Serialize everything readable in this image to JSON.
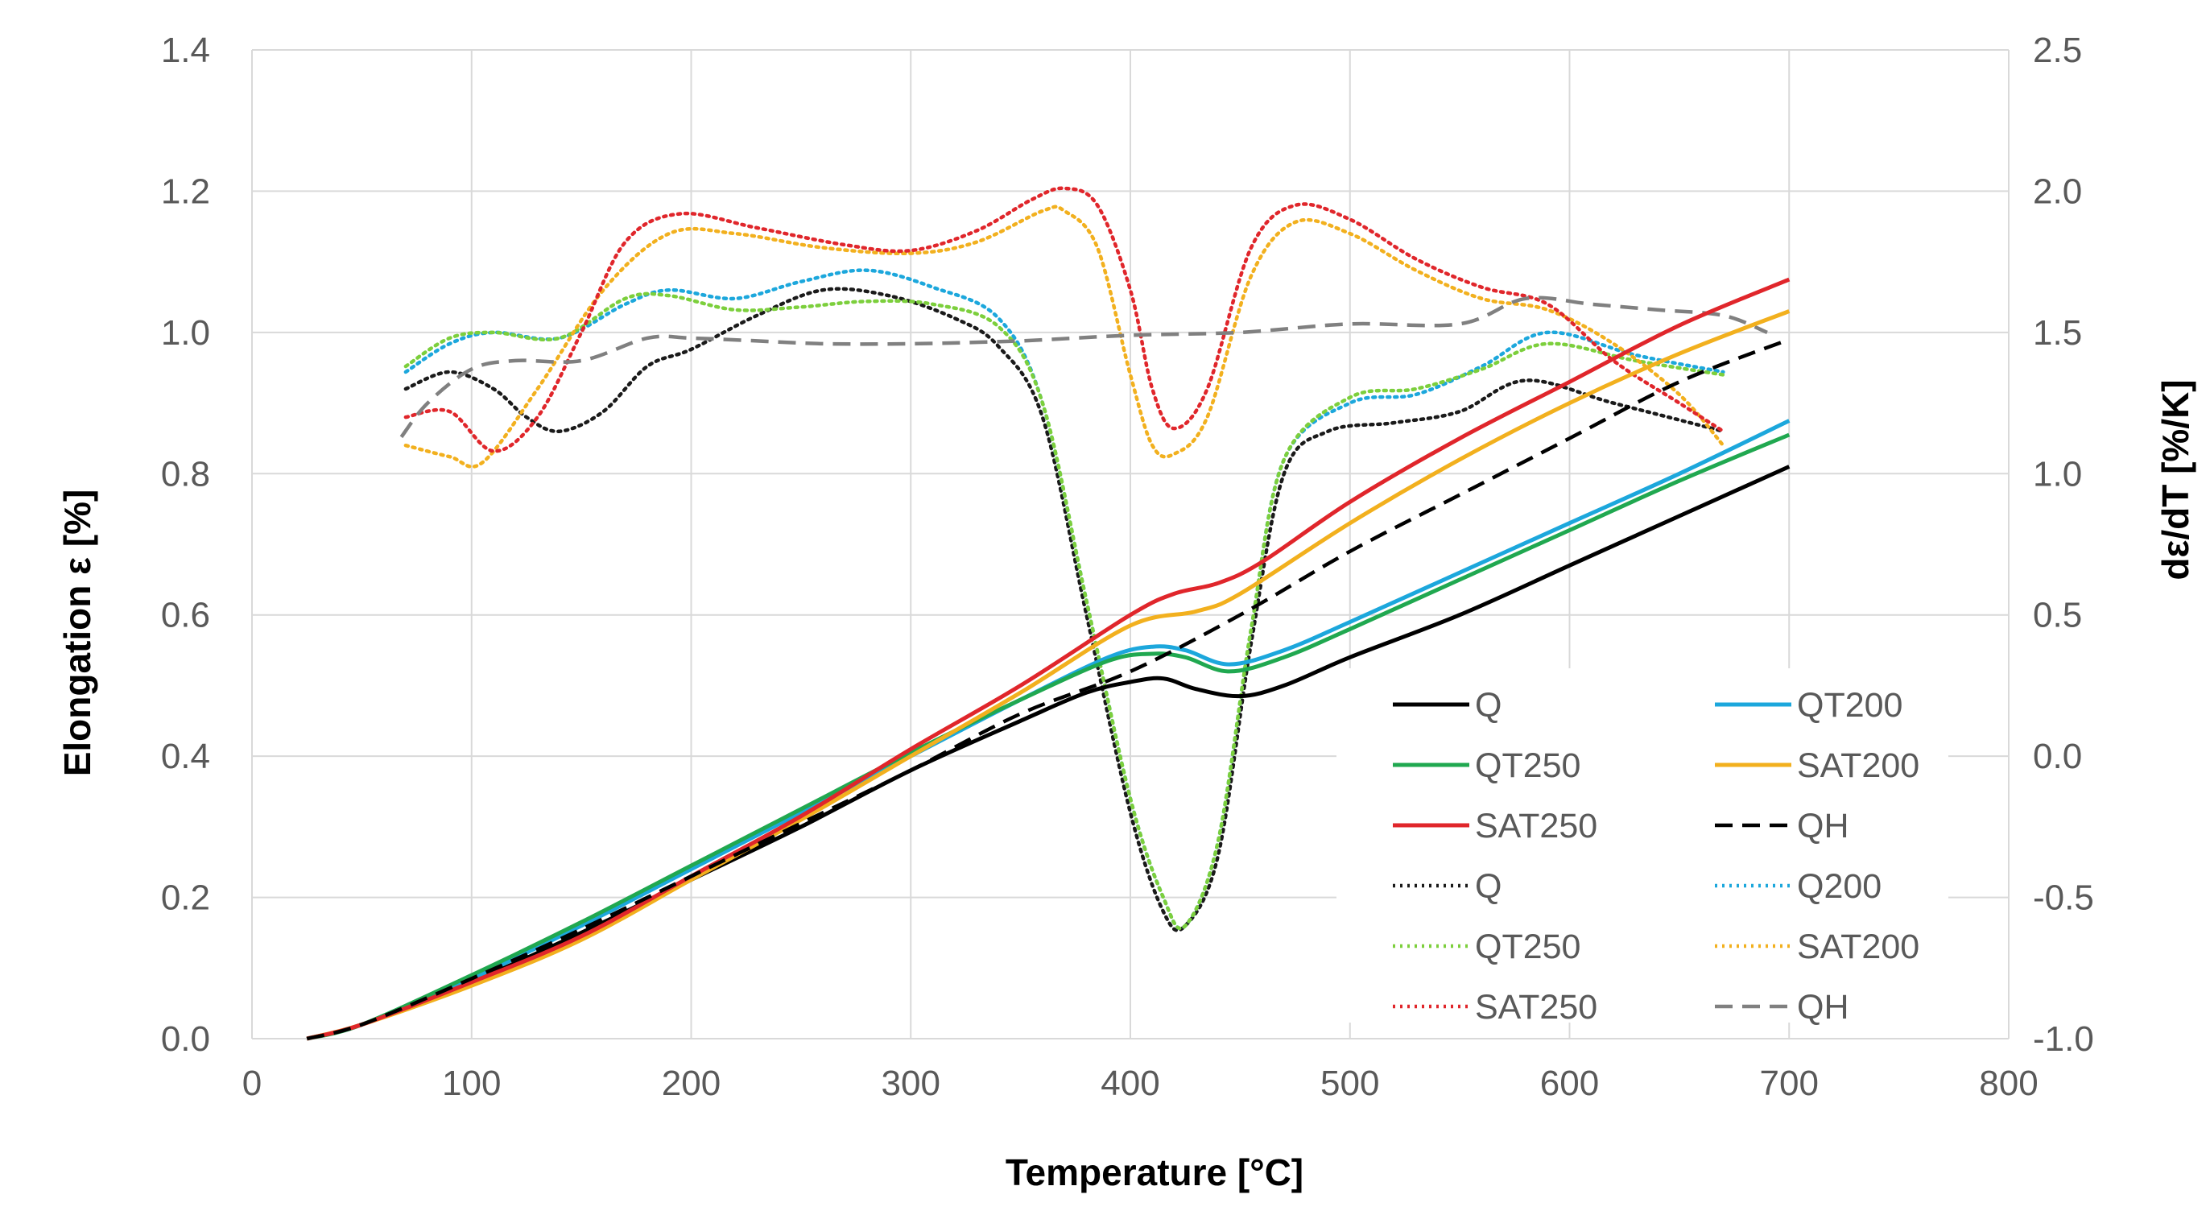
{
  "chart_data": {
    "type": "line",
    "title": "",
    "xlabel": "Temperature [°C]",
    "ylabel": "Elongation ε [%]",
    "y2label": "dε/dT [%/K]",
    "xlim": [
      0,
      800
    ],
    "ylim": [
      0,
      1.4
    ],
    "y2lim": [
      -1.0,
      2.5
    ],
    "x_ticks": [
      "0",
      "100",
      "200",
      "300",
      "400",
      "500",
      "600",
      "700",
      "800"
    ],
    "y_ticks": [
      "0.0",
      "0.2",
      "0.4",
      "0.6",
      "0.8",
      "1.0",
      "1.2",
      "1.4"
    ],
    "y2_ticks": [
      "-1.0",
      "-0.5",
      "0.0",
      "0.5",
      "1.0",
      "1.5",
      "2.0",
      "2.5"
    ],
    "grid": true,
    "legend_position": "bottom-right",
    "series": [
      {
        "name": "Q",
        "axis": "left",
        "style": "solid",
        "color": "#000000",
        "points": [
          [
            25,
            0
          ],
          [
            50,
            0.02
          ],
          [
            100,
            0.08
          ],
          [
            150,
            0.15
          ],
          [
            200,
            0.225
          ],
          [
            250,
            0.3
          ],
          [
            300,
            0.38
          ],
          [
            350,
            0.45
          ],
          [
            380,
            0.49
          ],
          [
            400,
            0.505
          ],
          [
            415,
            0.51
          ],
          [
            430,
            0.495
          ],
          [
            450,
            0.485
          ],
          [
            470,
            0.5
          ],
          [
            500,
            0.54
          ],
          [
            550,
            0.6
          ],
          [
            600,
            0.67
          ],
          [
            650,
            0.74
          ],
          [
            700,
            0.81
          ]
        ]
      },
      {
        "name": "QT200",
        "axis": "left",
        "style": "solid",
        "color": "#1ca7dc",
        "points": [
          [
            25,
            0
          ],
          [
            50,
            0.02
          ],
          [
            100,
            0.085
          ],
          [
            150,
            0.16
          ],
          [
            200,
            0.24
          ],
          [
            250,
            0.32
          ],
          [
            300,
            0.4
          ],
          [
            350,
            0.48
          ],
          [
            390,
            0.54
          ],
          [
            410,
            0.555
          ],
          [
            425,
            0.55
          ],
          [
            445,
            0.53
          ],
          [
            470,
            0.55
          ],
          [
            500,
            0.59
          ],
          [
            550,
            0.66
          ],
          [
            600,
            0.73
          ],
          [
            650,
            0.8
          ],
          [
            700,
            0.875
          ]
        ]
      },
      {
        "name": "QT250",
        "axis": "left",
        "style": "solid",
        "color": "#20a850",
        "points": [
          [
            25,
            0
          ],
          [
            50,
            0.02
          ],
          [
            100,
            0.09
          ],
          [
            150,
            0.165
          ],
          [
            200,
            0.245
          ],
          [
            250,
            0.325
          ],
          [
            300,
            0.405
          ],
          [
            350,
            0.48
          ],
          [
            390,
            0.535
          ],
          [
            410,
            0.545
          ],
          [
            425,
            0.54
          ],
          [
            445,
            0.52
          ],
          [
            470,
            0.54
          ],
          [
            500,
            0.58
          ],
          [
            550,
            0.65
          ],
          [
            600,
            0.72
          ],
          [
            650,
            0.79
          ],
          [
            700,
            0.855
          ]
        ]
      },
      {
        "name": "SAT200",
        "axis": "left",
        "style": "solid",
        "color": "#f2b01e",
        "points": [
          [
            25,
            0
          ],
          [
            50,
            0.02
          ],
          [
            100,
            0.075
          ],
          [
            150,
            0.14
          ],
          [
            200,
            0.225
          ],
          [
            250,
            0.31
          ],
          [
            300,
            0.4
          ],
          [
            350,
            0.49
          ],
          [
            400,
            0.585
          ],
          [
            430,
            0.605
          ],
          [
            450,
            0.63
          ],
          [
            500,
            0.73
          ],
          [
            550,
            0.82
          ],
          [
            600,
            0.9
          ],
          [
            650,
            0.97
          ],
          [
            700,
            1.03
          ]
        ]
      },
      {
        "name": "SAT250",
        "axis": "left",
        "style": "solid",
        "color": "#e0262b",
        "points": [
          [
            25,
            0
          ],
          [
            50,
            0.02
          ],
          [
            100,
            0.08
          ],
          [
            150,
            0.145
          ],
          [
            200,
            0.23
          ],
          [
            250,
            0.315
          ],
          [
            300,
            0.41
          ],
          [
            350,
            0.5
          ],
          [
            400,
            0.6
          ],
          [
            420,
            0.63
          ],
          [
            440,
            0.645
          ],
          [
            460,
            0.675
          ],
          [
            500,
            0.76
          ],
          [
            550,
            0.85
          ],
          [
            600,
            0.93
          ],
          [
            650,
            1.01
          ],
          [
            700,
            1.075
          ]
        ]
      },
      {
        "name": "QH",
        "axis": "left",
        "style": "dashed",
        "color": "#000000",
        "points": [
          [
            25,
            0
          ],
          [
            50,
            0.02
          ],
          [
            100,
            0.085
          ],
          [
            150,
            0.155
          ],
          [
            200,
            0.23
          ],
          [
            250,
            0.305
          ],
          [
            300,
            0.38
          ],
          [
            350,
            0.46
          ],
          [
            400,
            0.52
          ],
          [
            450,
            0.6
          ],
          [
            500,
            0.69
          ],
          [
            550,
            0.77
          ],
          [
            600,
            0.85
          ],
          [
            650,
            0.93
          ],
          [
            700,
            0.99
          ]
        ]
      },
      {
        "name": "Q",
        "axis": "right",
        "style": "dotted",
        "color": "#1a1a1a",
        "points": [
          [
            70,
            1.3
          ],
          [
            90,
            1.36
          ],
          [
            110,
            1.3
          ],
          [
            125,
            1.2
          ],
          [
            140,
            1.15
          ],
          [
            160,
            1.22
          ],
          [
            180,
            1.38
          ],
          [
            200,
            1.44
          ],
          [
            230,
            1.56
          ],
          [
            260,
            1.65
          ],
          [
            290,
            1.63
          ],
          [
            320,
            1.55
          ],
          [
            340,
            1.45
          ],
          [
            360,
            1.2
          ],
          [
            380,
            0.5
          ],
          [
            400,
            -0.2
          ],
          [
            415,
            -0.55
          ],
          [
            425,
            -0.6
          ],
          [
            440,
            -0.35
          ],
          [
            455,
            0.4
          ],
          [
            470,
            1.0
          ],
          [
            490,
            1.15
          ],
          [
            520,
            1.18
          ],
          [
            550,
            1.22
          ],
          [
            580,
            1.33
          ],
          [
            620,
            1.25
          ],
          [
            670,
            1.15
          ]
        ]
      },
      {
        "name": "Q200",
        "axis": "right",
        "style": "dotted",
        "color": "#1ca7dc",
        "points": [
          [
            70,
            1.36
          ],
          [
            90,
            1.46
          ],
          [
            110,
            1.5
          ],
          [
            140,
            1.48
          ],
          [
            170,
            1.6
          ],
          [
            190,
            1.65
          ],
          [
            220,
            1.62
          ],
          [
            250,
            1.68
          ],
          [
            280,
            1.72
          ],
          [
            310,
            1.66
          ],
          [
            340,
            1.55
          ],
          [
            360,
            1.25
          ],
          [
            380,
            0.55
          ],
          [
            400,
            -0.15
          ],
          [
            415,
            -0.5
          ],
          [
            425,
            -0.6
          ],
          [
            440,
            -0.3
          ],
          [
            455,
            0.45
          ],
          [
            470,
            1.05
          ],
          [
            500,
            1.25
          ],
          [
            530,
            1.28
          ],
          [
            560,
            1.38
          ],
          [
            590,
            1.5
          ],
          [
            630,
            1.42
          ],
          [
            670,
            1.36
          ]
        ]
      },
      {
        "name": "QT250",
        "axis": "right",
        "style": "dotted",
        "color": "#7ccf3c",
        "points": [
          [
            70,
            1.38
          ],
          [
            90,
            1.48
          ],
          [
            110,
            1.5
          ],
          [
            140,
            1.48
          ],
          [
            170,
            1.62
          ],
          [
            190,
            1.63
          ],
          [
            220,
            1.58
          ],
          [
            250,
            1.59
          ],
          [
            280,
            1.61
          ],
          [
            310,
            1.6
          ],
          [
            340,
            1.52
          ],
          [
            360,
            1.25
          ],
          [
            380,
            0.55
          ],
          [
            400,
            -0.15
          ],
          [
            415,
            -0.5
          ],
          [
            425,
            -0.6
          ],
          [
            440,
            -0.3
          ],
          [
            455,
            0.45
          ],
          [
            470,
            1.05
          ],
          [
            500,
            1.27
          ],
          [
            530,
            1.3
          ],
          [
            560,
            1.37
          ],
          [
            590,
            1.46
          ],
          [
            630,
            1.4
          ],
          [
            670,
            1.35
          ]
        ]
      },
      {
        "name": "SAT200",
        "axis": "right",
        "style": "dotted",
        "color": "#f2b01e",
        "points": [
          [
            70,
            1.1
          ],
          [
            90,
            1.06
          ],
          [
            105,
            1.04
          ],
          [
            130,
            1.3
          ],
          [
            160,
            1.65
          ],
          [
            190,
            1.85
          ],
          [
            220,
            1.85
          ],
          [
            260,
            1.8
          ],
          [
            300,
            1.78
          ],
          [
            330,
            1.82
          ],
          [
            360,
            1.93
          ],
          [
            370,
            1.93
          ],
          [
            385,
            1.8
          ],
          [
            400,
            1.35
          ],
          [
            410,
            1.1
          ],
          [
            420,
            1.07
          ],
          [
            435,
            1.2
          ],
          [
            455,
            1.7
          ],
          [
            475,
            1.89
          ],
          [
            500,
            1.85
          ],
          [
            530,
            1.72
          ],
          [
            560,
            1.62
          ],
          [
            590,
            1.58
          ],
          [
            620,
            1.46
          ],
          [
            650,
            1.28
          ],
          [
            670,
            1.1
          ]
        ]
      },
      {
        "name": "SAT250",
        "axis": "right",
        "style": "dotted",
        "color": "#e0262b",
        "points": [
          [
            70,
            1.2
          ],
          [
            90,
            1.22
          ],
          [
            110,
            1.08
          ],
          [
            130,
            1.2
          ],
          [
            150,
            1.5
          ],
          [
            170,
            1.82
          ],
          [
            195,
            1.92
          ],
          [
            230,
            1.87
          ],
          [
            270,
            1.81
          ],
          [
            300,
            1.79
          ],
          [
            330,
            1.86
          ],
          [
            355,
            1.97
          ],
          [
            370,
            2.01
          ],
          [
            385,
            1.95
          ],
          [
            400,
            1.65
          ],
          [
            410,
            1.3
          ],
          [
            420,
            1.16
          ],
          [
            435,
            1.3
          ],
          [
            455,
            1.8
          ],
          [
            475,
            1.95
          ],
          [
            500,
            1.9
          ],
          [
            530,
            1.76
          ],
          [
            560,
            1.66
          ],
          [
            590,
            1.6
          ],
          [
            620,
            1.4
          ],
          [
            650,
            1.25
          ],
          [
            670,
            1.15
          ]
        ]
      },
      {
        "name": "QH",
        "axis": "right",
        "style": "dashed",
        "color": "#808080",
        "points": [
          [
            68,
            1.13
          ],
          [
            80,
            1.25
          ],
          [
            100,
            1.37
          ],
          [
            120,
            1.4
          ],
          [
            150,
            1.4
          ],
          [
            180,
            1.48
          ],
          [
            200,
            1.48
          ],
          [
            230,
            1.47
          ],
          [
            260,
            1.46
          ],
          [
            300,
            1.46
          ],
          [
            350,
            1.47
          ],
          [
            400,
            1.49
          ],
          [
            450,
            1.5
          ],
          [
            500,
            1.53
          ],
          [
            550,
            1.53
          ],
          [
            580,
            1.62
          ],
          [
            610,
            1.6
          ],
          [
            640,
            1.58
          ],
          [
            670,
            1.56
          ],
          [
            690,
            1.5
          ]
        ]
      }
    ],
    "legend": [
      {
        "label": "Q",
        "style": "solid",
        "color": "#000000"
      },
      {
        "label": "QT200",
        "style": "solid",
        "color": "#1ca7dc"
      },
      {
        "label": "QT250",
        "style": "solid",
        "color": "#20a850"
      },
      {
        "label": "SAT200",
        "style": "solid",
        "color": "#f2b01e"
      },
      {
        "label": "SAT250",
        "style": "solid",
        "color": "#e0262b"
      },
      {
        "label": "QH",
        "style": "dashed",
        "color": "#000000"
      },
      {
        "label": "Q",
        "style": "dotted",
        "color": "#1a1a1a"
      },
      {
        "label": "Q200",
        "style": "dotted",
        "color": "#1ca7dc"
      },
      {
        "label": "QT250",
        "style": "dotted",
        "color": "#7ccf3c"
      },
      {
        "label": "SAT200",
        "style": "dotted",
        "color": "#f2b01e"
      },
      {
        "label": "SAT250",
        "style": "dotted",
        "color": "#e0262b"
      },
      {
        "label": "QH",
        "style": "dashed",
        "color": "#808080"
      }
    ]
  }
}
